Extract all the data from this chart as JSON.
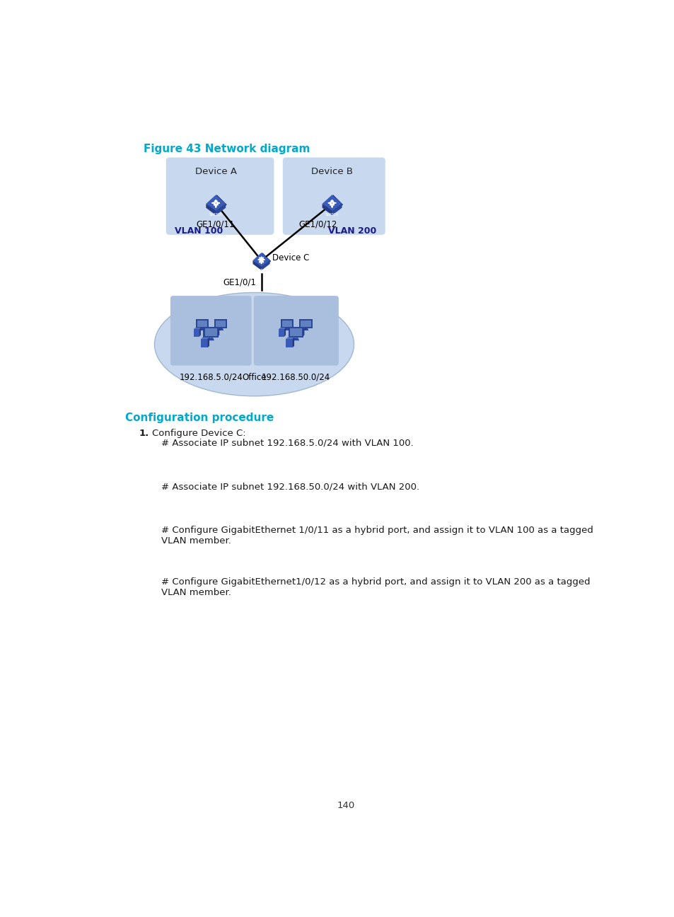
{
  "title": "Figure 43 Network diagram",
  "title_color": "#00AACC",
  "title_fontsize": 11,
  "bg_color": "#FFFFFF",
  "section_header": "Configuration procedure",
  "section_header_color": "#00AACC",
  "section_header_fontsize": 11,
  "numbered_item": "1.",
  "numbered_item_text": "Configure Device C:",
  "paragraphs": [
    "# Associate IP subnet 192.168.5.0/24 with VLAN 100.",
    "# Associate IP subnet 192.168.50.0/24 with VLAN 200.",
    "# Configure GigabitEthernet 1/0/11 as a hybrid port, and assign it to VLAN 100 as a tagged\nVLAN member.",
    "# Configure GigabitEthernet1/0/12 as a hybrid port, and assign it to VLAN 200 as a tagged\nVLAN member."
  ],
  "page_number": "140",
  "diagram": {
    "device_a_label": "Device A",
    "device_b_label": "Device B",
    "device_c_label": "Device C",
    "vlan100_label": "VLAN 100",
    "vlan200_label": "VLAN 200",
    "ge1011_label": "GE1/0/11",
    "ge1012_label": "GE1/0/12",
    "ge101_label": "GE1/0/1",
    "subnet1_label": "192.168.5.0/24",
    "subnet2_label": "192.168.50.0/24",
    "office_label": "Office",
    "box_bg": "#C8D8EE",
    "ellipse_bg": "#C8D8EE",
    "inner_box_bg": "#AABEDD",
    "device_box_bg": "#C8D8EE",
    "switch_dark": "#2B4FA0",
    "switch_mid": "#3A60B8",
    "switch_light": "#6080C8",
    "line_color": "#000000",
    "label_color": "#000000",
    "vlan_label_color": "#1A1A8C"
  }
}
